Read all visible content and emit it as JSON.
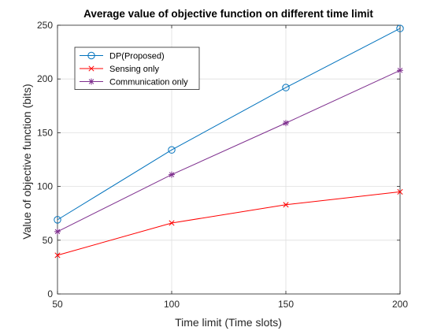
{
  "chart_data": {
    "type": "line",
    "title": "Average value of objective function on different time limit",
    "xlabel": "Time limit (Time slots)",
    "ylabel": "Value of objective function (bits)",
    "x": [
      50,
      100,
      150,
      200
    ],
    "xlim": [
      50,
      200
    ],
    "ylim": [
      0,
      250
    ],
    "xticks": [
      "50",
      "100",
      "150",
      "200"
    ],
    "yticks": [
      "0",
      "50",
      "100",
      "150",
      "200",
      "250"
    ],
    "grid": true,
    "legend_position": "top-left",
    "series": [
      {
        "name": "DP(Proposed)",
        "values": [
          69,
          134,
          192,
          247
        ],
        "color": "#0072BD",
        "marker": "circle"
      },
      {
        "name": "Sensing only",
        "values": [
          36,
          66,
          83,
          95
        ],
        "color": "#FF0000",
        "marker": "x"
      },
      {
        "name": "Communication only",
        "values": [
          58,
          111,
          159,
          208
        ],
        "color": "#7E2F8E",
        "marker": "asterisk"
      }
    ]
  }
}
